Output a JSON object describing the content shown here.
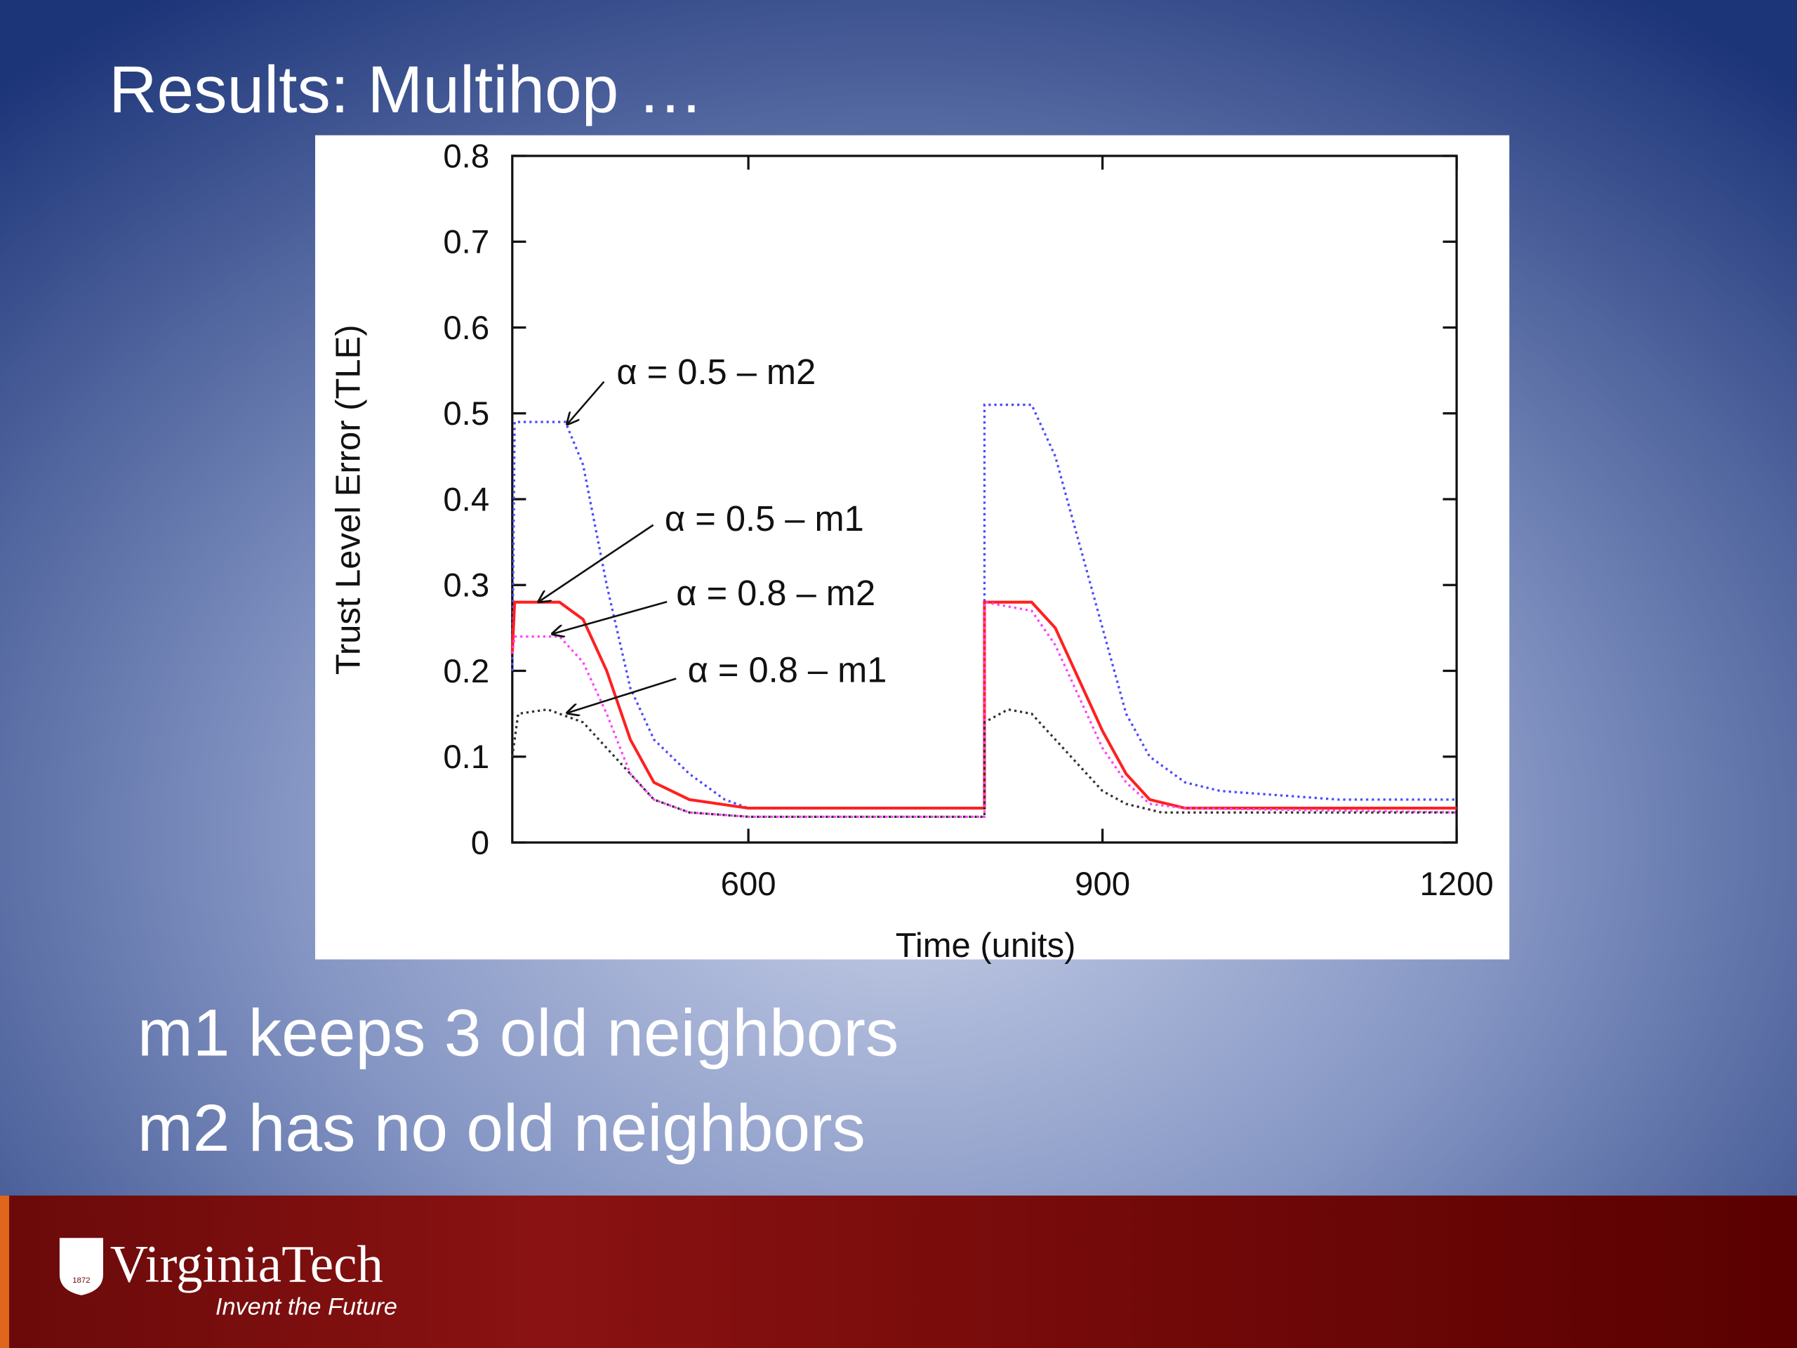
{
  "slide_title": "Results: Multihop …",
  "chart_data": {
    "type": "line",
    "x_label": "Time (units)",
    "y_label": "Trust Level Error (TLE)",
    "xlim": [
      400,
      1200
    ],
    "xticks": [
      600,
      900,
      1200
    ],
    "ylim": [
      0,
      0.8
    ],
    "yticks": [
      0,
      0.1,
      0.2,
      0.3,
      0.4,
      0.5,
      0.6,
      0.7,
      0.8
    ],
    "grid": false,
    "series": [
      {
        "name": "α = 0.5 – m2",
        "color": "#4a4aff",
        "line_style": "dotted",
        "x": [
          400,
          402,
          445,
          460,
          480,
          500,
          520,
          550,
          580,
          600,
          700,
          800,
          800,
          840,
          860,
          880,
          900,
          920,
          940,
          970,
          1000,
          1100,
          1200
        ],
        "values": [
          0.2,
          0.49,
          0.49,
          0.44,
          0.3,
          0.18,
          0.12,
          0.08,
          0.05,
          0.04,
          0.04,
          0.04,
          0.51,
          0.51,
          0.45,
          0.35,
          0.25,
          0.15,
          0.1,
          0.07,
          0.06,
          0.05,
          0.05
        ]
      },
      {
        "name": "α = 0.5 – m1",
        "color": "#ff2020",
        "line_style": "solid",
        "x": [
          400,
          402,
          440,
          460,
          480,
          500,
          520,
          550,
          600,
          800,
          800,
          840,
          860,
          880,
          900,
          920,
          940,
          970,
          1200
        ],
        "values": [
          0.22,
          0.28,
          0.28,
          0.26,
          0.2,
          0.12,
          0.07,
          0.05,
          0.04,
          0.04,
          0.28,
          0.28,
          0.25,
          0.19,
          0.13,
          0.08,
          0.05,
          0.04,
          0.04
        ]
      },
      {
        "name": "α = 0.8 – m2",
        "color": "#ff40ff",
        "line_style": "dotted",
        "x": [
          400,
          402,
          440,
          460,
          480,
          500,
          520,
          550,
          600,
          800,
          800,
          840,
          860,
          880,
          900,
          920,
          940,
          970,
          1200
        ],
        "values": [
          0.22,
          0.24,
          0.24,
          0.21,
          0.15,
          0.08,
          0.05,
          0.035,
          0.03,
          0.03,
          0.28,
          0.27,
          0.23,
          0.17,
          0.11,
          0.07,
          0.045,
          0.04,
          0.035
        ]
      },
      {
        "name": "α = 0.8 – m1",
        "color": "#333333",
        "line_style": "dotted",
        "x": [
          400,
          405,
          430,
          460,
          480,
          500,
          520,
          550,
          600,
          800,
          800,
          820,
          840,
          860,
          880,
          900,
          920,
          950,
          1200
        ],
        "values": [
          0.1,
          0.15,
          0.155,
          0.14,
          0.11,
          0.08,
          0.05,
          0.035,
          0.03,
          0.03,
          0.14,
          0.155,
          0.15,
          0.12,
          0.09,
          0.06,
          0.045,
          0.035,
          0.035
        ]
      }
    ]
  },
  "notes": [
    "m1 keeps 3 old neighbors",
    "m2 has no old neighbors"
  ],
  "footer": {
    "brand": "VirginiaTech",
    "tagline": "Invent the Future",
    "logo_year": "1872"
  }
}
